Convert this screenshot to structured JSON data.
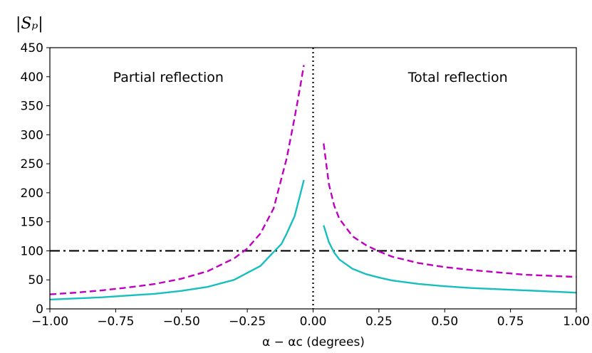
{
  "chart_data": {
    "type": "line",
    "title": "",
    "ylabel": "|S_p|",
    "ylabel_display": "|Sₚ|",
    "xlabel": "α − α_c (degrees)",
    "xlabel_display": "α − αc (degrees)",
    "xlim": [
      -1.0,
      1.0
    ],
    "ylim": [
      0,
      450
    ],
    "xticks": [
      -1.0,
      -0.75,
      -0.5,
      -0.25,
      0.0,
      0.25,
      0.5,
      0.75,
      1.0
    ],
    "xtick_labels": [
      "−1.00",
      "−0.75",
      "−0.50",
      "−0.25",
      "0.00",
      "0.25",
      "0.50",
      "0.75",
      "1.00"
    ],
    "yticks": [
      0,
      50,
      100,
      150,
      200,
      250,
      300,
      350,
      400,
      450
    ],
    "ytick_labels": [
      "0",
      "50",
      "100",
      "150",
      "200",
      "250",
      "300",
      "350",
      "400",
      "450"
    ],
    "annotations": [
      {
        "text": "Partial reflection",
        "x": -0.55,
        "y": 400
      },
      {
        "text": "Total reflection",
        "x": 0.55,
        "y": 400
      }
    ],
    "reference_lines": [
      {
        "orientation": "horizontal",
        "value": 100,
        "color": "#000000",
        "style": "dashdot"
      },
      {
        "orientation": "vertical",
        "value": 0.0,
        "color": "#000000",
        "style": "dotted"
      }
    ],
    "series": [
      {
        "name": "magenta-left",
        "color": "#c000c0",
        "style": "dashed",
        "x": [
          -1.0,
          -0.9,
          -0.8,
          -0.7,
          -0.6,
          -0.5,
          -0.4,
          -0.3,
          -0.25,
          -0.2,
          -0.15,
          -0.1,
          -0.07,
          -0.05,
          -0.035
        ],
        "y": [
          25,
          28,
          32,
          37,
          43,
          52,
          65,
          87,
          104,
          130,
          173,
          260,
          330,
          380,
          420
        ]
      },
      {
        "name": "magenta-right",
        "color": "#c000c0",
        "style": "dashed",
        "x": [
          0.04,
          0.06,
          0.08,
          0.1,
          0.15,
          0.2,
          0.25,
          0.3,
          0.4,
          0.5,
          0.6,
          0.7,
          0.8,
          0.9,
          1.0
        ],
        "y": [
          285,
          215,
          178,
          155,
          125,
          110,
          99,
          90,
          79,
          72,
          67,
          63,
          59,
          57,
          55
        ]
      },
      {
        "name": "cyan-left",
        "color": "#17bebe",
        "style": "solid",
        "x": [
          -1.0,
          -0.9,
          -0.8,
          -0.7,
          -0.6,
          -0.5,
          -0.4,
          -0.3,
          -0.2,
          -0.15,
          -0.12,
          -0.1,
          -0.07,
          -0.05,
          -0.035
        ],
        "y": [
          16,
          18,
          20,
          23,
          26,
          31,
          38,
          50,
          74,
          98,
          112,
          130,
          160,
          195,
          222
        ]
      },
      {
        "name": "cyan-right",
        "color": "#17bebe",
        "style": "solid",
        "x": [
          0.04,
          0.06,
          0.08,
          0.1,
          0.15,
          0.2,
          0.25,
          0.3,
          0.4,
          0.5,
          0.6,
          0.7,
          0.8,
          0.9,
          1.0
        ],
        "y": [
          144,
          115,
          97,
          85,
          69,
          60,
          54,
          49,
          43,
          39,
          36,
          34,
          32,
          30,
          28
        ]
      }
    ]
  }
}
